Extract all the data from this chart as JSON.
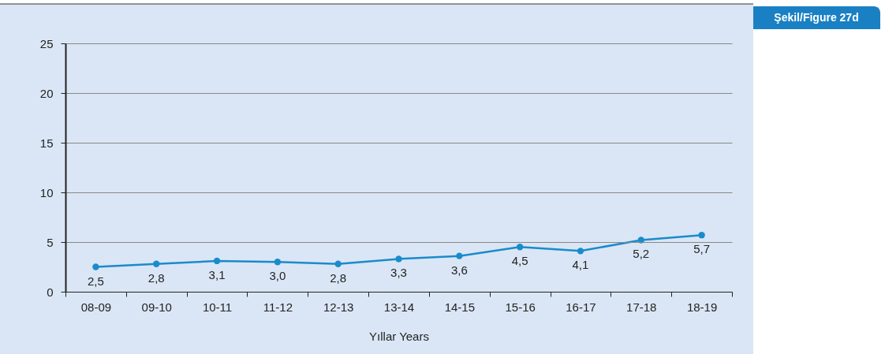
{
  "chart_data": {
    "type": "line",
    "title": "Şekil/Figure 27d",
    "xlabel": "Yıllar Years",
    "categories": [
      "08-09",
      "09-10",
      "10-11",
      "11-12",
      "12-13",
      "13-14",
      "14-15",
      "15-16",
      "16-17",
      "17-18",
      "18-19"
    ],
    "series": [
      {
        "color": "#1a8bcc",
        "values": [
          2.5,
          2.8,
          3.1,
          3.0,
          2.8,
          3.3,
          3.6,
          4.5,
          4.1,
          5.2,
          5.7
        ],
        "value_labels": [
          "2,5",
          "2,8",
          "3,1",
          "3,0",
          "2,8",
          "3,3",
          "3,6",
          "4,5",
          "4,1",
          "5,2",
          "5,7"
        ]
      }
    ],
    "ylim": [
      0,
      25
    ],
    "yticks": [
      0,
      5,
      10,
      15,
      20,
      25
    ],
    "grid": "y",
    "marker": "circle",
    "line_style": "solid"
  }
}
